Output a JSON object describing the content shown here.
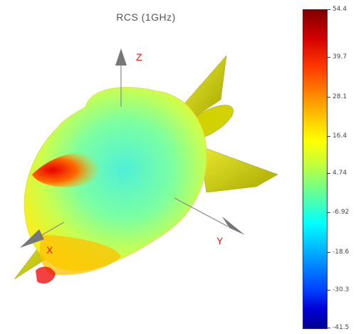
{
  "title": "RCS  (1GHz)",
  "axes": {
    "x_label": "X",
    "y_label": "Y",
    "z_label": "Z"
  },
  "colorbar": {
    "ticks": [
      "54.4",
      "39.7",
      "28.1",
      "16.4",
      "4.74",
      "-6.92",
      "-18.6",
      "-30.3",
      "-41.5"
    ]
  },
  "colors": {
    "title": "#555555",
    "axis_label": "#e41a1a",
    "body": "#c8c800"
  }
}
